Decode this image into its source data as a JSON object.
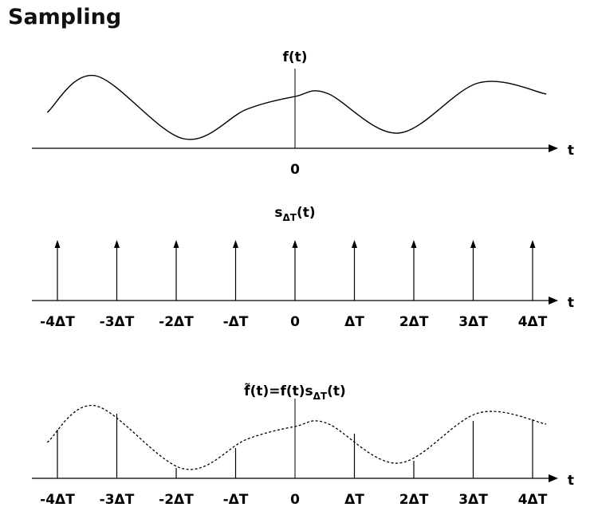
{
  "title": "Sampling",
  "diagram": {
    "panels": [
      {
        "id": "signal",
        "label_main": "f(t)",
        "label_sub": "",
        "label_tail": "",
        "axis_label": "t",
        "tick_labels": [
          "0"
        ]
      },
      {
        "id": "impulse_train",
        "label_main": "s",
        "label_sub": "ΔT",
        "label_tail": "(t)",
        "axis_label": "t",
        "tick_labels": [
          "-4ΔT",
          "-3ΔT",
          "-2ΔT",
          "-ΔT",
          "0",
          "ΔT",
          "2ΔT",
          "3ΔT",
          "4ΔT"
        ]
      },
      {
        "id": "sampled",
        "label_main": "f̃(t)=f(t)s",
        "label_sub": "ΔT",
        "label_tail": "(t)",
        "axis_label": "t",
        "tick_labels": [
          "-4ΔT",
          "-3ΔT",
          "-2ΔT",
          "-ΔT",
          "0",
          "ΔT",
          "2ΔT",
          "3ΔT",
          "4ΔT"
        ]
      }
    ],
    "sample_positions": [
      -4,
      -3,
      -2,
      -1,
      0,
      1,
      2,
      3,
      4
    ],
    "curve_t": [
      -4.17,
      -3.36,
      -1.88,
      -0.81,
      0,
      0.54,
      1.74,
      3.09,
      4.23
    ],
    "curve_amplitude": [
      0.45,
      0.91,
      0.12,
      0.49,
      0.65,
      0.69,
      0.19,
      0.82,
      0.68
    ],
    "sample_values": [
      0.61,
      0.81,
      0.13,
      0.38,
      0.65,
      0.56,
      0.22,
      0.72,
      0.74
    ],
    "line_color": "#000000"
  }
}
